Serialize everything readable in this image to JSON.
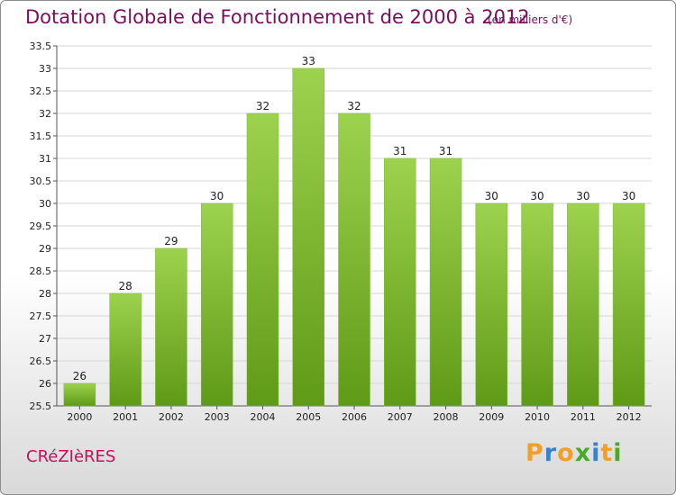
{
  "title": "Dotation Globale de Fonctionnement de 2000 à 2012",
  "unit_note": "(en milliers d'€)",
  "commune": "CRéZIèRES",
  "logo": {
    "text": "Proxiti",
    "letters": [
      {
        "ch": "P",
        "color": "#f0a02a"
      },
      {
        "ch": "r",
        "color": "#3a7fd0"
      },
      {
        "ch": "o",
        "color": "#f0a02a"
      },
      {
        "ch": "x",
        "color": "#4aa82a"
      },
      {
        "ch": "i",
        "color": "#3a7fd0"
      },
      {
        "ch": "t",
        "color": "#f0a02a"
      },
      {
        "ch": "i",
        "color": "#4aa82a"
      }
    ]
  },
  "colors": {
    "bar_top": "#9dd24e",
    "bar_bottom": "#5f9a16",
    "grid": "#d6d6d6",
    "title": "#7a0f5a",
    "commune": "#c0115a"
  },
  "chart_data": {
    "type": "bar",
    "title": "Dotation Globale de Fonctionnement de 2000 à 2012",
    "subtitle": "(en milliers d'€)",
    "categories": [
      "2000",
      "2001",
      "2002",
      "2003",
      "2004",
      "2005",
      "2006",
      "2007",
      "2008",
      "2009",
      "2010",
      "2011",
      "2012"
    ],
    "values": [
      26,
      28,
      29,
      30,
      32,
      33,
      32,
      31,
      31,
      30,
      30,
      30,
      30
    ],
    "data_labels": [
      "26",
      "28",
      "29",
      "30",
      "32",
      "33",
      "32",
      "31",
      "31",
      "30",
      "30",
      "30",
      "30"
    ],
    "ylim": [
      25.5,
      33.5
    ],
    "yticks": [
      "25.5",
      "26",
      "26.5",
      "27",
      "27.5",
      "28",
      "28.5",
      "29",
      "29.5",
      "30",
      "30.5",
      "31",
      "31.5",
      "32",
      "32.5",
      "33",
      "33.5"
    ],
    "xlabel": "",
    "ylabel": "",
    "grid": true,
    "legend": "none"
  }
}
